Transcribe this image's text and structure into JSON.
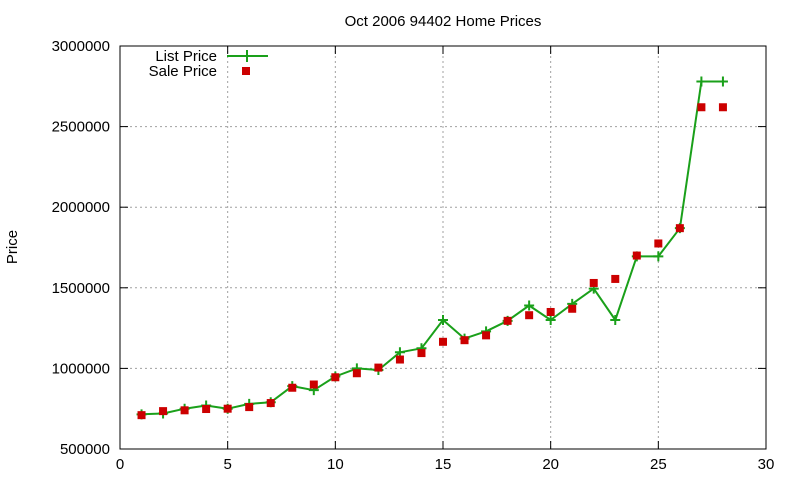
{
  "chart_data": {
    "type": "line",
    "title": "Oct 2006 94402 Home Prices",
    "xlabel": "",
    "ylabel": "Price",
    "xlim": [
      0,
      30
    ],
    "ylim": [
      500000,
      3000000
    ],
    "x_ticks": [
      0,
      5,
      10,
      15,
      20,
      25,
      30
    ],
    "y_ticks": [
      500000,
      1000000,
      1500000,
      2000000,
      2500000,
      3000000
    ],
    "x_tick_labels": [
      "0",
      "5",
      "10",
      "15",
      "20",
      "25",
      "30"
    ],
    "y_tick_labels": [
      "500000",
      "1000000",
      "1500000",
      "2000000",
      "2500000",
      "3000000"
    ],
    "grid": true,
    "legend_position": "top-left",
    "series": [
      {
        "name": "List Price",
        "style": "line-plus",
        "color": "#1aa01a",
        "x": [
          1,
          2,
          3,
          4,
          5,
          6,
          7,
          8,
          9,
          10,
          11,
          12,
          13,
          14,
          15,
          16,
          17,
          18,
          19,
          20,
          21,
          22,
          23,
          24,
          25,
          26,
          27,
          28
        ],
        "y": [
          715000,
          720000,
          750000,
          770000,
          750000,
          780000,
          790000,
          890000,
          865000,
          950000,
          1000000,
          990000,
          1100000,
          1125000,
          1300000,
          1185000,
          1230000,
          1295000,
          1390000,
          1300000,
          1400000,
          1495000,
          1300000,
          1695000,
          1695000,
          1870000,
          2780000,
          2780000
        ]
      },
      {
        "name": "Sale Price",
        "style": "square-markers",
        "color": "#cc0000",
        "x": [
          1,
          2,
          3,
          4,
          5,
          6,
          7,
          8,
          9,
          10,
          11,
          12,
          13,
          14,
          15,
          16,
          17,
          18,
          19,
          20,
          21,
          22,
          23,
          24,
          25,
          26,
          27,
          28
        ],
        "y": [
          710000,
          735000,
          740000,
          748000,
          750000,
          760000,
          785000,
          880000,
          900000,
          945000,
          970000,
          1005000,
          1055000,
          1095000,
          1165000,
          1175000,
          1205000,
          1295000,
          1330000,
          1350000,
          1370000,
          1530000,
          1555000,
          1700000,
          1775000,
          1870000,
          2620000,
          2620000
        ]
      }
    ]
  }
}
